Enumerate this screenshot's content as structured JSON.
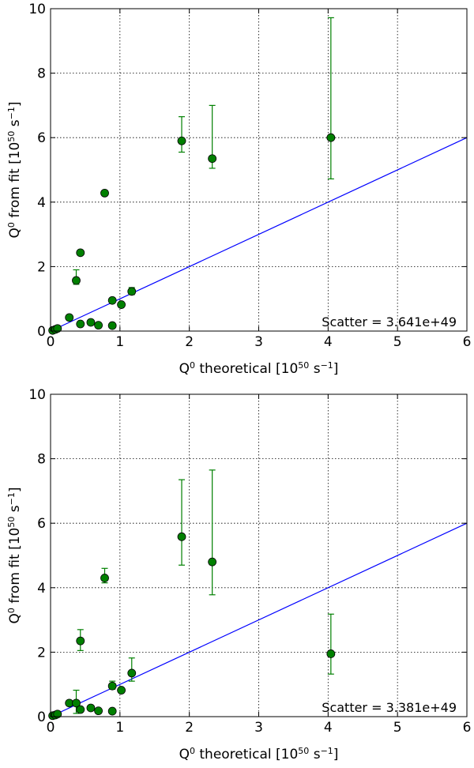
{
  "colors": {
    "points": "#008000",
    "errorbars": "#008000",
    "line": "#0000ff",
    "grid": "#000000"
  },
  "chart_data": [
    {
      "type": "scatter",
      "xlabel": {
        "base": "Q",
        "sup": "0",
        "rest": "  theoretical [10",
        "exp": "50",
        "unit": " s",
        "unit_sup": "−1",
        "close": "]"
      },
      "ylabel": {
        "base": "Q",
        "sup": "0",
        "rest": "  from fit [10",
        "exp": "50",
        "unit": " s",
        "unit_sup": "−1",
        "close": "]"
      },
      "xlim": [
        0,
        6
      ],
      "ylim": [
        0,
        10
      ],
      "xticks": [
        "0",
        "1",
        "2",
        "3",
        "4",
        "5",
        "6"
      ],
      "yticks": [
        "0",
        "2",
        "4",
        "6",
        "8",
        "10"
      ],
      "grid": true,
      "annotation": "Scatter =  3.641e+49",
      "reference_line": {
        "x": [
          0,
          6
        ],
        "y": [
          0,
          6
        ]
      },
      "points": [
        {
          "x": 0.03,
          "y": 0.02,
          "lo": 0.02,
          "hi": 0.02
        },
        {
          "x": 0.07,
          "y": 0.05,
          "lo": 0.05,
          "hi": 0.05
        },
        {
          "x": 0.1,
          "y": 0.08,
          "lo": 0.08,
          "hi": 0.08
        },
        {
          "x": 0.27,
          "y": 0.42,
          "lo": 0.38,
          "hi": 0.48
        },
        {
          "x": 0.37,
          "y": 1.57,
          "lo": 1.45,
          "hi": 1.9
        },
        {
          "x": 0.43,
          "y": 2.43,
          "lo": 2.43,
          "hi": 2.43
        },
        {
          "x": 0.43,
          "y": 0.22,
          "lo": 0.22,
          "hi": 0.22
        },
        {
          "x": 0.58,
          "y": 0.27,
          "lo": 0.27,
          "hi": 0.27
        },
        {
          "x": 0.69,
          "y": 0.18,
          "lo": 0.18,
          "hi": 0.18
        },
        {
          "x": 0.78,
          "y": 4.28,
          "lo": 4.28,
          "hi": 4.28
        },
        {
          "x": 0.89,
          "y": 0.95,
          "lo": 0.95,
          "hi": 0.95
        },
        {
          "x": 0.89,
          "y": 0.17,
          "lo": 0.17,
          "hi": 0.17
        },
        {
          "x": 1.02,
          "y": 0.82,
          "lo": 0.82,
          "hi": 0.82
        },
        {
          "x": 1.17,
          "y": 1.23,
          "lo": 1.13,
          "hi": 1.35
        },
        {
          "x": 1.89,
          "y": 5.9,
          "lo": 5.55,
          "hi": 6.65
        },
        {
          "x": 2.33,
          "y": 5.35,
          "lo": 5.05,
          "hi": 7.0
        },
        {
          "x": 4.04,
          "y": 6.0,
          "lo": 4.72,
          "hi": 9.72
        }
      ]
    },
    {
      "type": "scatter",
      "xlabel": {
        "base": "Q",
        "sup": "0",
        "rest": "  theoretical [10",
        "exp": "50",
        "unit": " s",
        "unit_sup": "−1",
        "close": "]"
      },
      "ylabel": {
        "base": "Q",
        "sup": "0",
        "rest": "  from fit [10",
        "exp": "50",
        "unit": " s",
        "unit_sup": "−1",
        "close": "]"
      },
      "xlim": [
        0,
        6
      ],
      "ylim": [
        0,
        10
      ],
      "xticks": [
        "0",
        "1",
        "2",
        "3",
        "4",
        "5",
        "6"
      ],
      "yticks": [
        "0",
        "2",
        "4",
        "6",
        "8",
        "10"
      ],
      "grid": true,
      "annotation": "Scatter =  3.381e+49",
      "reference_line": {
        "x": [
          0,
          6
        ],
        "y": [
          0,
          6
        ]
      },
      "points": [
        {
          "x": 0.03,
          "y": 0.03,
          "lo": 0.03,
          "hi": 0.03
        },
        {
          "x": 0.07,
          "y": 0.05,
          "lo": 0.05,
          "hi": 0.05
        },
        {
          "x": 0.1,
          "y": 0.08,
          "lo": 0.08,
          "hi": 0.08
        },
        {
          "x": 0.27,
          "y": 0.42,
          "lo": 0.38,
          "hi": 0.48
        },
        {
          "x": 0.37,
          "y": 0.42,
          "lo": 0.1,
          "hi": 0.82
        },
        {
          "x": 0.43,
          "y": 2.35,
          "lo": 2.05,
          "hi": 2.7
        },
        {
          "x": 0.43,
          "y": 0.22,
          "lo": 0.22,
          "hi": 0.22
        },
        {
          "x": 0.58,
          "y": 0.27,
          "lo": 0.27,
          "hi": 0.27
        },
        {
          "x": 0.69,
          "y": 0.18,
          "lo": 0.18,
          "hi": 0.18
        },
        {
          "x": 0.78,
          "y": 4.3,
          "lo": 4.15,
          "hi": 4.6
        },
        {
          "x": 0.89,
          "y": 0.95,
          "lo": 0.85,
          "hi": 1.1
        },
        {
          "x": 0.89,
          "y": 0.17,
          "lo": 0.17,
          "hi": 0.17
        },
        {
          "x": 1.02,
          "y": 0.82,
          "lo": 0.82,
          "hi": 0.82
        },
        {
          "x": 1.17,
          "y": 1.35,
          "lo": 1.1,
          "hi": 1.82
        },
        {
          "x": 1.89,
          "y": 5.58,
          "lo": 4.7,
          "hi": 7.35
        },
        {
          "x": 2.33,
          "y": 4.8,
          "lo": 3.78,
          "hi": 7.65
        },
        {
          "x": 4.04,
          "y": 1.95,
          "lo": 1.32,
          "hi": 3.18
        }
      ]
    }
  ]
}
